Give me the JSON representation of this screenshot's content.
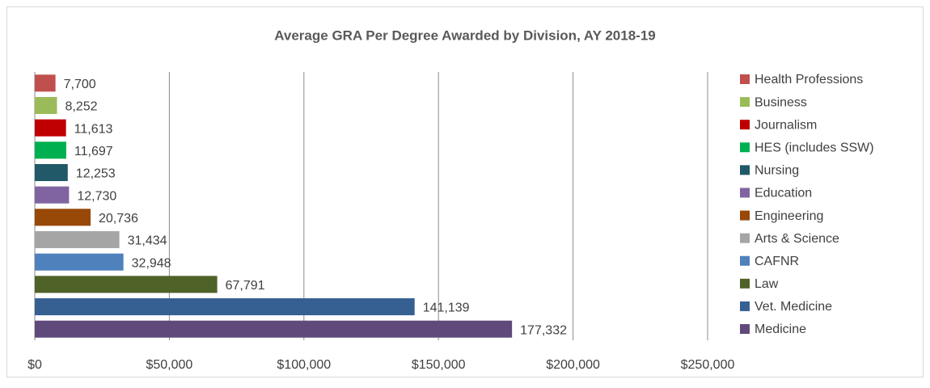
{
  "chart_data": {
    "type": "bar",
    "orientation": "horizontal",
    "title": "Average GRA Per Degree Awarded by Division, AY 2018-19",
    "series": [
      {
        "name": "Health Professions",
        "color": "#c0504d",
        "values": [
          7700
        ],
        "value_labels": [
          "7,700"
        ]
      },
      {
        "name": "Business",
        "color": "#9bbb59",
        "values": [
          8252
        ],
        "value_labels": [
          "8,252"
        ]
      },
      {
        "name": "Journalism",
        "color": "#c00000",
        "values": [
          11613
        ],
        "value_labels": [
          "11,613"
        ]
      },
      {
        "name": "HES (includes SSW)",
        "color": "#00b050",
        "values": [
          11697
        ],
        "value_labels": [
          "11,697"
        ]
      },
      {
        "name": "Nursing",
        "color": "#215968",
        "values": [
          12253
        ],
        "value_labels": [
          "12,253"
        ]
      },
      {
        "name": "Education",
        "color": "#8064a2",
        "values": [
          12730
        ],
        "value_labels": [
          "12,730"
        ]
      },
      {
        "name": "Engineering",
        "color": "#984807",
        "values": [
          20736
        ],
        "value_labels": [
          "20,736"
        ]
      },
      {
        "name": "Arts & Science",
        "color": "#a5a5a5",
        "values": [
          31434
        ],
        "value_labels": [
          "31,434"
        ]
      },
      {
        "name": "CAFNR",
        "color": "#4f81bd",
        "values": [
          32948
        ],
        "value_labels": [
          "32,948"
        ]
      },
      {
        "name": "Law",
        "color": "#4f6228",
        "values": [
          67791
        ],
        "value_labels": [
          "67,791"
        ]
      },
      {
        "name": "Vet. Medicine",
        "color": "#366092",
        "values": [
          141139
        ],
        "value_labels": [
          "141,139"
        ]
      },
      {
        "name": "Medicine",
        "color": "#604a7b",
        "values": [
          177332
        ],
        "value_labels": [
          "177,332"
        ]
      }
    ],
    "xlim": [
      0,
      250000
    ],
    "xticks": [
      {
        "value": 0,
        "label": "$0"
      },
      {
        "value": 50000,
        "label": "$50,000"
      },
      {
        "value": 100000,
        "label": "$100,000"
      },
      {
        "value": 150000,
        "label": "$150,000"
      },
      {
        "value": 200000,
        "label": "$200,000"
      },
      {
        "value": 250000,
        "label": "$250,000"
      }
    ],
    "grid": true,
    "legend": "right"
  }
}
